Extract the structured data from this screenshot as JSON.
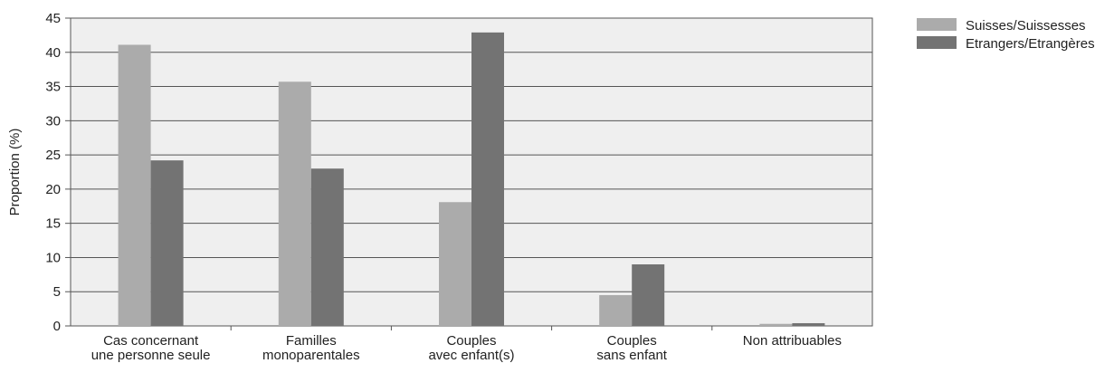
{
  "chart_data": {
    "type": "bar",
    "title": "",
    "xlabel": "",
    "ylabel": "Proportion (%)",
    "ylim": [
      0,
      45
    ],
    "yticks": [
      0,
      5,
      10,
      15,
      20,
      25,
      30,
      35,
      40,
      45
    ],
    "grid": true,
    "legend_position": "right",
    "categories": [
      [
        "Cas concernant",
        "une personne seule"
      ],
      [
        "Familles",
        "monoparentales"
      ],
      [
        "Couples",
        "avec enfant(s)"
      ],
      [
        "Couples",
        "sans enfant"
      ],
      [
        "Non attribuables"
      ]
    ],
    "series": [
      {
        "name": "Suisses/Suissesses",
        "color": "#ababab",
        "values": [
          41.1,
          35.7,
          18.1,
          4.5,
          0.3
        ]
      },
      {
        "name": "Etrangers/Etrangères",
        "color": "#737373",
        "values": [
          24.2,
          23.0,
          42.9,
          9.0,
          0.4
        ]
      }
    ],
    "plot_background": "#efefef",
    "gridline_color": "#555555"
  }
}
